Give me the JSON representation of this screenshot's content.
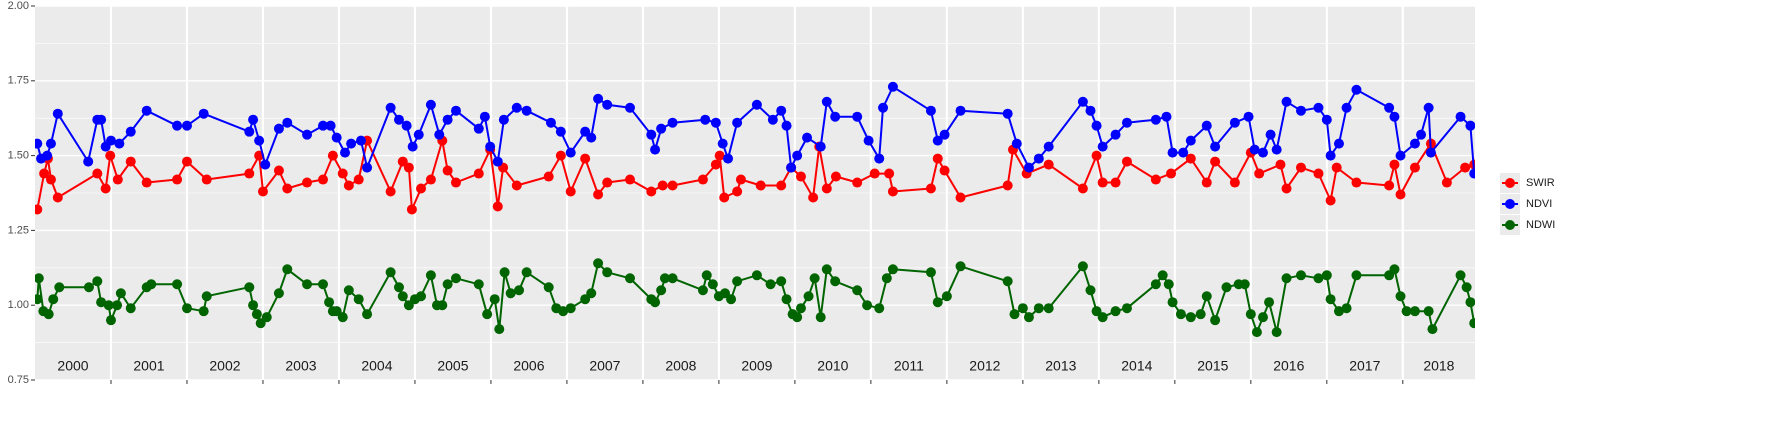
{
  "chart_data": {
    "type": "line",
    "xlim": [
      2000,
      2018.95
    ],
    "xticks": [
      2001,
      2002,
      2003,
      2004,
      2005,
      2006,
      2007,
      2008,
      2009,
      2010,
      2011,
      2012,
      2013,
      2014,
      2015,
      2016,
      2017,
      2018
    ],
    "ylim": [
      0.75,
      2
    ],
    "yticks": [
      0.75,
      {
        "value": 1,
        "label": "1.00"
      },
      1.25,
      {
        "value": 1.5,
        "label": "1.50"
      },
      1.75,
      {
        "value": 2,
        "label": "2.00"
      }
    ],
    "grid": true,
    "legend": "right",
    "annotations": [
      "2000",
      "2001",
      "2002",
      "2003",
      "2004",
      "2005",
      "2006",
      "2007",
      "2008",
      "2009",
      "2010",
      "2011",
      "2012",
      "2013",
      "2014",
      "2015",
      "2016",
      "2017",
      "2018"
    ],
    "series": [
      {
        "name": "SWIR",
        "color": "#ff0000",
        "x": [
          2000.03,
          2000.12,
          2000.17,
          2000.21,
          2000.3,
          2000.82,
          2000.93,
          2000.99,
          2001.09,
          2001.26,
          2001.47,
          2001.87,
          2002.0,
          2002.26,
          2002.82,
          2002.95,
          2003.0,
          2003.21,
          2003.32,
          2003.58,
          2003.79,
          2003.92,
          2004.05,
          2004.13,
          2004.26,
          2004.37,
          2004.68,
          2004.84,
          2004.92,
          2004.96,
          2005.08,
          2005.21,
          2005.36,
          2005.43,
          2005.54,
          2005.84,
          2005.99,
          2006.09,
          2006.16,
          2006.34,
          2006.76,
          2006.92,
          2007.05,
          2007.24,
          2007.41,
          2007.53,
          2007.83,
          2008.11,
          2008.26,
          2008.39,
          2008.79,
          2008.96,
          2009.01,
          2009.07,
          2009.24,
          2009.29,
          2009.55,
          2009.82,
          2009.95,
          2010.08,
          2010.24,
          2010.32,
          2010.42,
          2010.54,
          2010.82,
          2011.05,
          2011.24,
          2011.29,
          2011.79,
          2011.88,
          2011.97,
          2012.18,
          2012.8,
          2012.87,
          2013.05,
          2013.34,
          2013.79,
          2013.97,
          2014.05,
          2014.22,
          2014.37,
          2014.75,
          2014.95,
          2015.21,
          2015.42,
          2015.53,
          2015.79,
          2016.0,
          2016.11,
          2016.39,
          2016.47,
          2016.66,
          2016.89,
          2017.05,
          2017.13,
          2017.39,
          2017.82,
          2017.89,
          2017.97,
          2018.16,
          2018.37,
          2018.58,
          2018.82,
          2018.94
        ],
        "values": [
          1.32,
          1.44,
          1.49,
          1.42,
          1.36,
          1.44,
          1.39,
          1.5,
          1.42,
          1.48,
          1.41,
          1.42,
          1.48,
          1.42,
          1.44,
          1.5,
          1.38,
          1.45,
          1.39,
          1.41,
          1.42,
          1.5,
          1.44,
          1.4,
          1.42,
          1.55,
          1.38,
          1.48,
          1.46,
          1.32,
          1.39,
          1.42,
          1.55,
          1.45,
          1.41,
          1.44,
          1.52,
          1.33,
          1.46,
          1.4,
          1.43,
          1.5,
          1.38,
          1.49,
          1.37,
          1.41,
          1.42,
          1.38,
          1.4,
          1.4,
          1.42,
          1.47,
          1.5,
          1.36,
          1.38,
          1.42,
          1.4,
          1.4,
          1.46,
          1.43,
          1.36,
          1.53,
          1.39,
          1.43,
          1.41,
          1.44,
          1.44,
          1.38,
          1.39,
          1.49,
          1.45,
          1.36,
          1.4,
          1.52,
          1.44,
          1.47,
          1.39,
          1.5,
          1.41,
          1.41,
          1.48,
          1.42,
          1.44,
          1.49,
          1.41,
          1.48,
          1.41,
          1.51,
          1.44,
          1.47,
          1.39,
          1.46,
          1.44,
          1.35,
          1.46,
          1.41,
          1.4,
          1.47,
          1.37,
          1.46,
          1.54,
          1.41,
          1.46,
          1.47
        ]
      },
      {
        "name": "NDVI",
        "color": "#0000ff",
        "x": [
          2000.03,
          2000.08,
          2000.16,
          2000.21,
          2000.3,
          2000.7,
          2000.82,
          2000.87,
          2000.93,
          2001.0,
          2001.11,
          2001.26,
          2001.47,
          2001.87,
          2002.0,
          2002.22,
          2002.82,
          2002.87,
          2002.95,
          2003.03,
          2003.21,
          2003.32,
          2003.58,
          2003.79,
          2003.89,
          2003.97,
          2004.08,
          2004.16,
          2004.29,
          2004.37,
          2004.68,
          2004.79,
          2004.89,
          2004.97,
          2005.05,
          2005.21,
          2005.32,
          2005.43,
          2005.54,
          2005.84,
          2005.92,
          2005.99,
          2006.09,
          2006.17,
          2006.34,
          2006.47,
          2006.79,
          2006.92,
          2007.05,
          2007.24,
          2007.32,
          2007.41,
          2007.53,
          2007.83,
          2008.11,
          2008.16,
          2008.24,
          2008.39,
          2008.82,
          2008.96,
          2009.05,
          2009.12,
          2009.24,
          2009.5,
          2009.71,
          2009.82,
          2009.89,
          2009.95,
          2010.03,
          2010.16,
          2010.34,
          2010.42,
          2010.53,
          2010.82,
          2010.97,
          2011.11,
          2011.16,
          2011.29,
          2011.79,
          2011.88,
          2011.97,
          2012.18,
          2012.8,
          2012.92,
          2013.08,
          2013.21,
          2013.34,
          2013.79,
          2013.89,
          2013.97,
          2014.05,
          2014.22,
          2014.37,
          2014.75,
          2014.89,
          2014.97,
          2015.11,
          2015.21,
          2015.42,
          2015.53,
          2015.79,
          2015.97,
          2016.05,
          2016.16,
          2016.26,
          2016.34,
          2016.47,
          2016.66,
          2016.89,
          2017.0,
          2017.05,
          2017.16,
          2017.26,
          2017.39,
          2017.82,
          2017.89,
          2017.97,
          2018.16,
          2018.24,
          2018.34,
          2018.37,
          2018.76,
          2018.89,
          2018.94
        ],
        "values": [
          1.54,
          1.49,
          1.5,
          1.54,
          1.64,
          1.48,
          1.62,
          1.62,
          1.53,
          1.55,
          1.54,
          1.58,
          1.65,
          1.6,
          1.6,
          1.64,
          1.58,
          1.62,
          1.55,
          1.47,
          1.59,
          1.61,
          1.57,
          1.6,
          1.6,
          1.56,
          1.51,
          1.54,
          1.55,
          1.46,
          1.66,
          1.62,
          1.6,
          1.53,
          1.57,
          1.67,
          1.57,
          1.62,
          1.65,
          1.59,
          1.63,
          1.53,
          1.48,
          1.62,
          1.66,
          1.65,
          1.61,
          1.58,
          1.51,
          1.58,
          1.56,
          1.69,
          1.67,
          1.66,
          1.57,
          1.52,
          1.59,
          1.61,
          1.62,
          1.61,
          1.54,
          1.49,
          1.61,
          1.67,
          1.62,
          1.65,
          1.6,
          1.46,
          1.5,
          1.56,
          1.53,
          1.68,
          1.63,
          1.63,
          1.55,
          1.49,
          1.66,
          1.73,
          1.65,
          1.55,
          1.57,
          1.65,
          1.64,
          1.54,
          1.46,
          1.49,
          1.53,
          1.68,
          1.65,
          1.6,
          1.53,
          1.57,
          1.61,
          1.62,
          1.63,
          1.51,
          1.51,
          1.55,
          1.6,
          1.53,
          1.61,
          1.63,
          1.52,
          1.51,
          1.57,
          1.52,
          1.68,
          1.65,
          1.66,
          1.62,
          1.5,
          1.54,
          1.66,
          1.72,
          1.66,
          1.63,
          1.5,
          1.54,
          1.57,
          1.66,
          1.51,
          1.63,
          1.6,
          1.44
        ]
      },
      {
        "name": "NDWI",
        "color": "#006400",
        "x": [
          2000.03,
          2000.05,
          2000.11,
          2000.18,
          2000.24,
          2000.32,
          2000.71,
          2000.82,
          2000.87,
          2000.97,
          2001.0,
          2001.08,
          2001.13,
          2001.26,
          2001.47,
          2001.53,
          2001.87,
          2002.0,
          2002.22,
          2002.26,
          2002.82,
          2002.87,
          2002.92,
          2002.97,
          2003.05,
          2003.21,
          2003.32,
          2003.58,
          2003.79,
          2003.87,
          2003.92,
          2003.97,
          2004.05,
          2004.13,
          2004.26,
          2004.37,
          2004.68,
          2004.79,
          2004.84,
          2004.92,
          2005.0,
          2005.08,
          2005.21,
          2005.29,
          2005.36,
          2005.43,
          2005.54,
          2005.84,
          2005.95,
          2006.05,
          2006.11,
          2006.18,
          2006.26,
          2006.37,
          2006.47,
          2006.76,
          2006.86,
          2006.95,
          2007.05,
          2007.24,
          2007.32,
          2007.41,
          2007.53,
          2007.83,
          2008.11,
          2008.16,
          2008.24,
          2008.29,
          2008.39,
          2008.79,
          2008.84,
          2008.92,
          2009.0,
          2009.08,
          2009.16,
          2009.24,
          2009.5,
          2009.68,
          2009.82,
          2009.89,
          2009.97,
          2010.03,
          2010.08,
          2010.18,
          2010.26,
          2010.34,
          2010.42,
          2010.53,
          2010.82,
          2010.95,
          2011.11,
          2011.21,
          2011.29,
          2011.79,
          2011.88,
          2012.0,
          2012.18,
          2012.8,
          2012.89,
          2013.0,
          2013.08,
          2013.21,
          2013.34,
          2013.79,
          2013.89,
          2013.97,
          2014.05,
          2014.22,
          2014.37,
          2014.75,
          2014.84,
          2014.92,
          2014.97,
          2015.08,
          2015.21,
          2015.34,
          2015.42,
          2015.53,
          2015.68,
          2015.84,
          2015.92,
          2016.0,
          2016.08,
          2016.16,
          2016.24,
          2016.34,
          2016.47,
          2016.66,
          2016.89,
          2017.0,
          2017.05,
          2017.16,
          2017.26,
          2017.39,
          2017.82,
          2017.89,
          2017.97,
          2018.05,
          2018.16,
          2018.34,
          2018.39,
          2018.76,
          2018.84,
          2018.89,
          2018.94
        ],
        "values": [
          1.02,
          1.09,
          0.98,
          0.97,
          1.02,
          1.06,
          1.06,
          1.08,
          1.01,
          1.0,
          0.95,
          1.0,
          1.04,
          0.99,
          1.06,
          1.07,
          1.07,
          0.99,
          0.98,
          1.03,
          1.06,
          1.0,
          0.97,
          0.94,
          0.96,
          1.04,
          1.12,
          1.07,
          1.07,
          1.01,
          0.98,
          0.98,
          0.96,
          1.05,
          1.02,
          0.97,
          1.11,
          1.06,
          1.03,
          1.0,
          1.02,
          1.03,
          1.1,
          1.0,
          1.0,
          1.07,
          1.09,
          1.07,
          0.97,
          1.02,
          0.92,
          1.11,
          1.04,
          1.05,
          1.11,
          1.06,
          0.99,
          0.98,
          0.99,
          1.02,
          1.04,
          1.14,
          1.11,
          1.09,
          1.02,
          1.01,
          1.05,
          1.09,
          1.09,
          1.05,
          1.1,
          1.07,
          1.03,
          1.04,
          1.02,
          1.08,
          1.1,
          1.07,
          1.08,
          1.02,
          0.97,
          0.96,
          0.99,
          1.03,
          1.09,
          0.96,
          1.12,
          1.08,
          1.05,
          1.0,
          0.99,
          1.09,
          1.12,
          1.11,
          1.01,
          1.03,
          1.13,
          1.08,
          0.97,
          0.99,
          0.96,
          0.99,
          0.99,
          1.13,
          1.05,
          0.98,
          0.96,
          0.98,
          0.99,
          1.07,
          1.1,
          1.07,
          1.01,
          0.97,
          0.96,
          0.97,
          1.03,
          0.95,
          1.06,
          1.07,
          1.07,
          0.97,
          0.91,
          0.96,
          1.01,
          0.91,
          1.09,
          1.1,
          1.09,
          1.1,
          1.02,
          0.98,
          0.99,
          1.1,
          1.1,
          1.12,
          1.03,
          0.98,
          0.98,
          0.98,
          0.92,
          1.1,
          1.06,
          1.01,
          0.94
        ]
      }
    ]
  }
}
